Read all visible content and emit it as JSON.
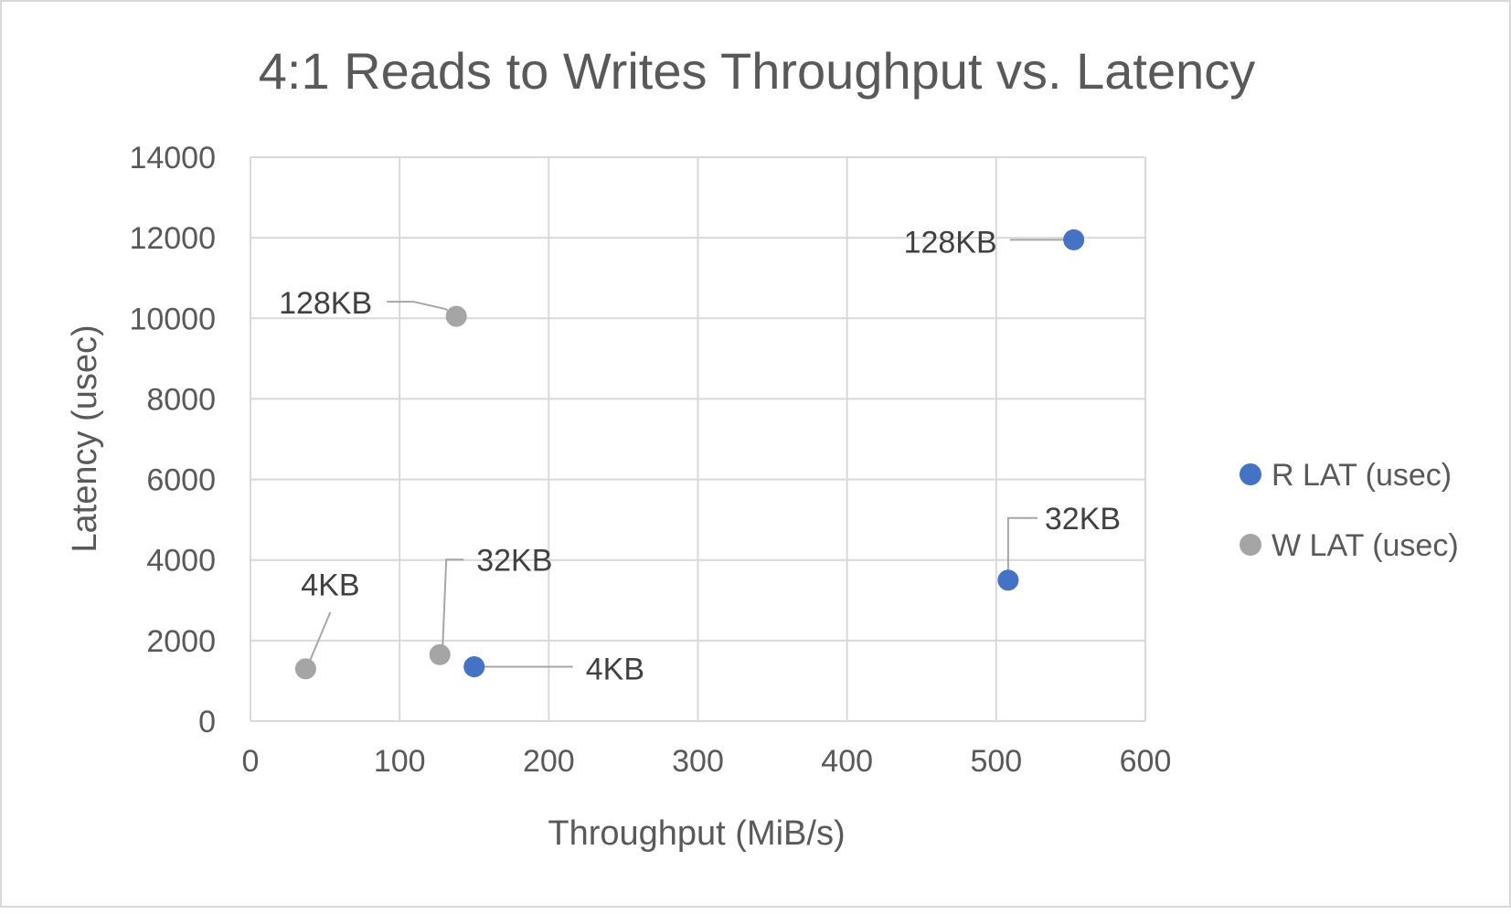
{
  "chart_data": {
    "type": "scatter",
    "title": "4:1 Reads to Writes Throughput vs. Latency",
    "xlabel": "Throughput (MiB/s)",
    "ylabel": "Latency (usec)",
    "xlim": [
      0,
      600
    ],
    "ylim": [
      0,
      14000
    ],
    "xticks": [
      0,
      100,
      200,
      300,
      400,
      500,
      600
    ],
    "yticks": [
      0,
      2000,
      4000,
      6000,
      8000,
      10000,
      12000,
      14000
    ],
    "grid": true,
    "legend_position": "right",
    "series": [
      {
        "name": "R LAT (usec)",
        "color": "#4472c4",
        "points": [
          {
            "x": 150,
            "y": 1350,
            "label": "4KB"
          },
          {
            "x": 508,
            "y": 3500,
            "label": "32KB"
          },
          {
            "x": 552,
            "y": 11950,
            "label": "128KB"
          }
        ]
      },
      {
        "name": "W LAT (usec)",
        "color": "#a5a5a5",
        "points": [
          {
            "x": 37,
            "y": 1300,
            "label": "4KB"
          },
          {
            "x": 127,
            "y": 1650,
            "label": "32KB"
          },
          {
            "x": 138,
            "y": 10050,
            "label": "128KB"
          }
        ]
      }
    ]
  }
}
